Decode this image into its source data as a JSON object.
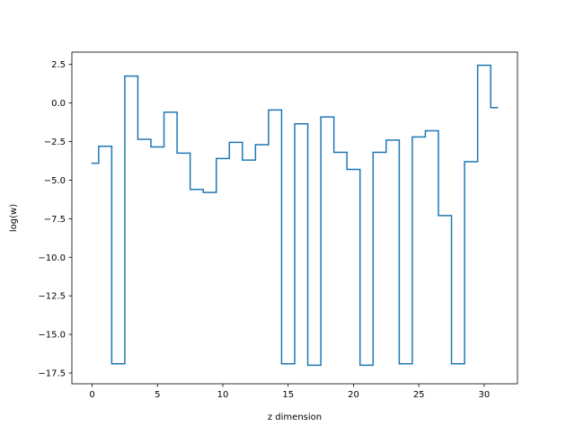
{
  "chart_data": {
    "type": "line",
    "drawstyle": "steps-mid",
    "xlabel": "z dimension",
    "ylabel": "log(w)",
    "xlim": [
      -1.55,
      32.55
    ],
    "ylim": [
      -18.2,
      3.3
    ],
    "xticks": [
      0,
      5,
      10,
      15,
      20,
      25,
      30
    ],
    "xtick_labels": [
      "0",
      "5",
      "10",
      "15",
      "20",
      "25",
      "30"
    ],
    "yticks": [
      2.5,
      0.0,
      -2.5,
      -5.0,
      -7.5,
      -10.0,
      -12.5,
      -15.0,
      -17.5
    ],
    "ytick_labels": [
      "2.5",
      "0.0",
      "−2.5",
      "−5.0",
      "−7.5",
      "−10.0",
      "−12.5",
      "−15.0",
      "−17.5"
    ],
    "grid": false,
    "series": [
      {
        "color": "#1f77b4",
        "x": [
          0,
          1,
          2,
          3,
          4,
          5,
          6,
          7,
          8,
          9,
          10,
          11,
          12,
          13,
          14,
          15,
          16,
          17,
          18,
          19,
          20,
          21,
          22,
          23,
          24,
          25,
          26,
          27,
          28,
          29,
          30,
          31
        ],
        "y": [
          -3.9,
          -2.8,
          -16.9,
          1.75,
          -2.35,
          -2.85,
          -0.6,
          -3.25,
          -5.6,
          -5.8,
          -3.6,
          -2.55,
          -3.7,
          -2.7,
          -0.45,
          -16.9,
          -1.35,
          -17.0,
          -0.9,
          -3.2,
          -4.3,
          -17.0,
          -3.2,
          -2.4,
          -16.9,
          -2.2,
          -1.8,
          -7.3,
          -16.9,
          -3.8,
          2.45,
          -0.3
        ]
      }
    ]
  }
}
